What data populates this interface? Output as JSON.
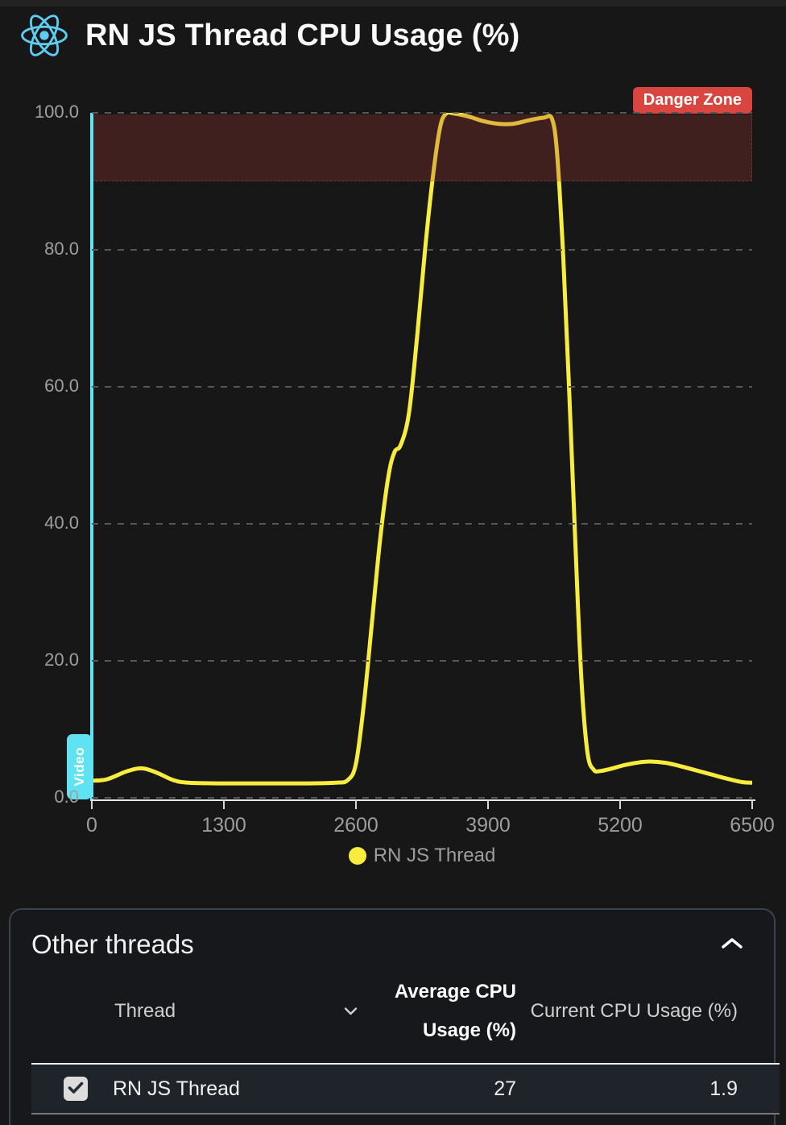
{
  "header": {
    "title": "RN JS Thread CPU Usage (%)",
    "logo_icon": "react-logo"
  },
  "chart_data": {
    "type": "line",
    "title": "RN JS Thread CPU Usage (%)",
    "xlabel": "",
    "ylabel": "",
    "xlim": [
      0,
      6500
    ],
    "ylim": [
      0,
      100
    ],
    "xticks": [
      0,
      1300,
      2600,
      3900,
      5200,
      6500
    ],
    "yticks": [
      0,
      20,
      40,
      60,
      80,
      100
    ],
    "ytick_labels": [
      "0.0",
      "20.0",
      "40.0",
      "60.0",
      "80.0",
      "100.0"
    ],
    "grid": true,
    "legend": {
      "position": "bottom",
      "entries": [
        {
          "label": "RN JS Thread",
          "color": "#f8ec3f"
        }
      ]
    },
    "danger_zone": {
      "label": "Danger Zone",
      "from": 90,
      "to": 100,
      "badge_color": "#d9453f"
    },
    "marker": {
      "label": "Video",
      "x": 0,
      "color": "#63e3f2"
    },
    "series": [
      {
        "name": "RN JS Thread",
        "color": "#f8ec3f",
        "points": [
          [
            0,
            2.5
          ],
          [
            150,
            2.7
          ],
          [
            350,
            3.9
          ],
          [
            500,
            4.3
          ],
          [
            650,
            3.6
          ],
          [
            800,
            2.6
          ],
          [
            950,
            2.2
          ],
          [
            1300,
            2.1
          ],
          [
            1700,
            2.1
          ],
          [
            2100,
            2.1
          ],
          [
            2400,
            2.2
          ],
          [
            2520,
            2.6
          ],
          [
            2600,
            5
          ],
          [
            2680,
            14
          ],
          [
            2760,
            26
          ],
          [
            2840,
            38
          ],
          [
            2920,
            47
          ],
          [
            2980,
            50.5
          ],
          [
            3040,
            51.5
          ],
          [
            3120,
            56
          ],
          [
            3200,
            67
          ],
          [
            3280,
            80
          ],
          [
            3360,
            91
          ],
          [
            3430,
            98
          ],
          [
            3490,
            99.9
          ],
          [
            3560,
            99.9
          ],
          [
            3700,
            99.5
          ],
          [
            3850,
            98.8
          ],
          [
            4000,
            98.4
          ],
          [
            4150,
            98.4
          ],
          [
            4300,
            98.9
          ],
          [
            4450,
            99.3
          ],
          [
            4530,
            99.1
          ],
          [
            4580,
            94
          ],
          [
            4640,
            79
          ],
          [
            4700,
            59
          ],
          [
            4760,
            37
          ],
          [
            4820,
            17
          ],
          [
            4880,
            6.5
          ],
          [
            4940,
            4.1
          ],
          [
            5000,
            3.9
          ],
          [
            5100,
            4.2
          ],
          [
            5250,
            4.8
          ],
          [
            5400,
            5.2
          ],
          [
            5500,
            5.3
          ],
          [
            5650,
            5.1
          ],
          [
            5800,
            4.6
          ],
          [
            5950,
            4.0
          ],
          [
            6100,
            3.4
          ],
          [
            6250,
            2.8
          ],
          [
            6400,
            2.3
          ],
          [
            6500,
            2.2
          ]
        ]
      }
    ]
  },
  "panel": {
    "title": "Other threads",
    "collapse_icon": "chevron-up",
    "table": {
      "columns": [
        {
          "label": "Thread",
          "sortable": true,
          "sort_icon": "chevron-down"
        },
        {
          "label": "Average CPU Usage (%)",
          "bold": true
        },
        {
          "label": "Current CPU Usage (%)"
        }
      ],
      "rows": [
        {
          "checked": true,
          "checkbox_icon": "checkmark",
          "thread": "RN JS Thread",
          "avg": "27",
          "current": "1.9"
        }
      ]
    }
  },
  "colors": {
    "background": "#171717",
    "accent_yellow": "#f8ec3f",
    "accent_cyan": "#63e3f2",
    "danger_red": "#d9453f",
    "react_blue": "#5ecdf2",
    "row_background": "#1f242b",
    "panel_border": "#3a4150"
  }
}
